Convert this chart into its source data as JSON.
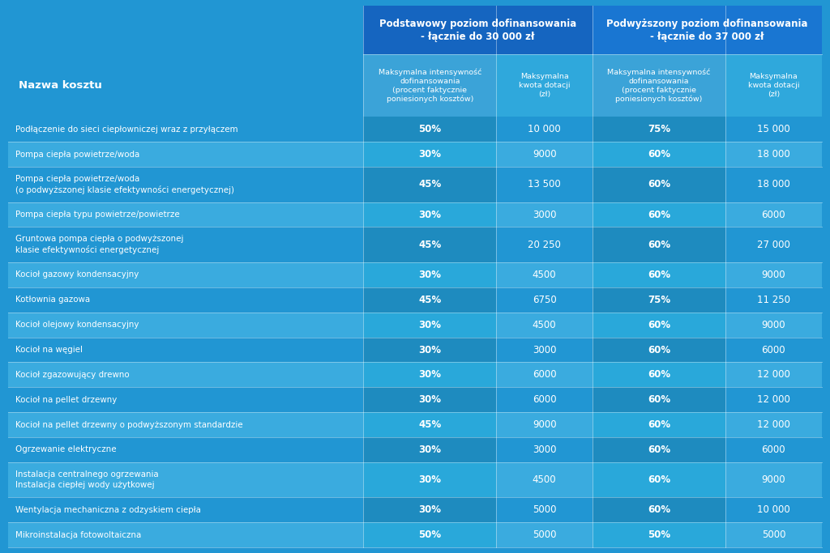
{
  "bg_color": "#2196d3",
  "col_group1": "Podstawowy poziom dofinansowania\n- łącznie do 30 000 zł",
  "col_group2": "Podwyższony poziom dofinansowania\n- łącznie do 37 000 zł",
  "col1_header": "Nazwa kosztu",
  "col_sub1": "Maksymalna intensywność\ndofinansowania\n(procent faktycznie\nponiesionych kosztów)",
  "col_sub2": "Maksymalna\nkwota dotacji\n(zł)",
  "col_sub3": "Maksymalna intensywność\ndofinansowania\n(procent faktycznie\nponiesionych kosztów)",
  "col_sub4": "Maksymalna\nkwota dotacji\n(zł)",
  "group1_color": "#1565c0",
  "group2_color": "#1976d2",
  "sub_left_color": "#3ba3d8",
  "sub_right_color": "#2fa8dc",
  "row_colors": [
    "#2196d3",
    "#3aabdf"
  ],
  "right_colors": [
    "#1e8bbf",
    "#29a8da"
  ],
  "rows": [
    {
      "name": "Podłączenie do sieci ciepłowniczej wraz z przyłączem",
      "p1": "50%",
      "v1": "10 000",
      "p2": "75%",
      "v2": "15 000",
      "tall": false
    },
    {
      "name": "Pompa ciepła powietrze/woda",
      "p1": "30%",
      "v1": "9000",
      "p2": "60%",
      "v2": "18 000",
      "tall": false
    },
    {
      "name": "Pompa ciepła powietrze/woda\n(o podwyższonej klasie efektywności energetycznej)",
      "p1": "45%",
      "v1": "13 500",
      "p2": "60%",
      "v2": "18 000",
      "tall": true
    },
    {
      "name": "Pompa ciepła typu powietrze/powietrze",
      "p1": "30%",
      "v1": "3000",
      "p2": "60%",
      "v2": "6000",
      "tall": false
    },
    {
      "name": "Gruntowa pompa ciepła o podwyższonej\nklasie efektywności energetycznej",
      "p1": "45%",
      "v1": "20 250",
      "p2": "60%",
      "v2": "27 000",
      "tall": true
    },
    {
      "name": "Kocioł gazowy kondensacyjny",
      "p1": "30%",
      "v1": "4500",
      "p2": "60%",
      "v2": "9000",
      "tall": false
    },
    {
      "name": "Kotłownia gazowa",
      "p1": "45%",
      "v1": "6750",
      "p2": "75%",
      "v2": "11 250",
      "tall": false
    },
    {
      "name": "Kocioł olejowy kondensacyjny",
      "p1": "30%",
      "v1": "4500",
      "p2": "60%",
      "v2": "9000",
      "tall": false
    },
    {
      "name": "Kocioł na węgiel",
      "p1": "30%",
      "v1": "3000",
      "p2": "60%",
      "v2": "6000",
      "tall": false
    },
    {
      "name": "Kocioł zgazowujący drewno",
      "p1": "30%",
      "v1": "6000",
      "p2": "60%",
      "v2": "12 000",
      "tall": false
    },
    {
      "name": "Kocioł na pellet drzewny",
      "p1": "30%",
      "v1": "6000",
      "p2": "60%",
      "v2": "12 000",
      "tall": false
    },
    {
      "name": "Kocioł na pellet drzewny o podwyższonym standardzie",
      "p1": "45%",
      "v1": "9000",
      "p2": "60%",
      "v2": "12 000",
      "tall": false
    },
    {
      "name": "Ogrzewanie elektryczne",
      "p1": "30%",
      "v1": "3000",
      "p2": "60%",
      "v2": "6000",
      "tall": false
    },
    {
      "name": "Instalacja centralnego ogrzewania\nInstalacja ciepłej wody użytkowej",
      "p1": "30%",
      "v1": "4500",
      "p2": "60%",
      "v2": "9000",
      "tall": true
    },
    {
      "name": "Wentylacja mechaniczna z odzyskiem ciepła",
      "p1": "30%",
      "v1": "5000",
      "p2": "60%",
      "v2": "10 000",
      "tall": false
    },
    {
      "name": "Mikroinstalacja fotowoltaiczna",
      "p1": "50%",
      "v1": "5000",
      "p2": "50%",
      "v2": "5000",
      "tall": false
    }
  ]
}
